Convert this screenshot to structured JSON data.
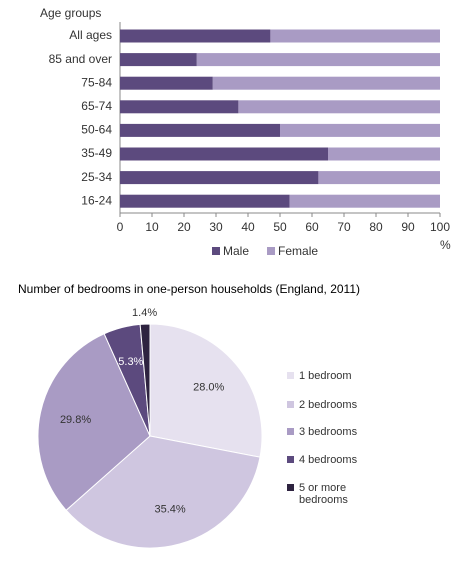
{
  "chart_data": [
    {
      "type": "bar",
      "orientation": "horizontal",
      "stacked": true,
      "y_title": "Age groups",
      "x_unit": "%",
      "categories": [
        "All ages",
        "85 and over",
        "75-84",
        "65-74",
        "50-64",
        "35-49",
        "25-34",
        "16-24"
      ],
      "series": [
        {
          "name": "Male",
          "color": "#5c4a7e",
          "values": [
            47,
            24,
            29,
            37,
            50,
            65,
            62,
            53
          ]
        },
        {
          "name": "Female",
          "color": "#a99bc4",
          "values": [
            53,
            76,
            71,
            63,
            50,
            35,
            38,
            47
          ]
        }
      ],
      "xlim": [
        0,
        100
      ],
      "xticks": [
        0,
        10,
        20,
        30,
        40,
        50,
        60,
        70,
        80,
        90,
        100
      ],
      "legend": "bottom"
    },
    {
      "type": "pie",
      "title": "Number of bedrooms in one-person households (England, 2011)",
      "categories": [
        "1 bedroom",
        "2 bedrooms",
        "3 bedrooms",
        "4 bedrooms",
        "5 or more bedrooms"
      ],
      "values": [
        28.0,
        35.4,
        29.8,
        5.3,
        1.4
      ],
      "value_labels": [
        "28.0%",
        "35.4%",
        "29.8%",
        "5.3%",
        "1.4%"
      ],
      "colors": [
        "#e6e1ef",
        "#cfc6e0",
        "#a99bc4",
        "#5c4a7e",
        "#2e2340"
      ],
      "legend": "right"
    }
  ]
}
